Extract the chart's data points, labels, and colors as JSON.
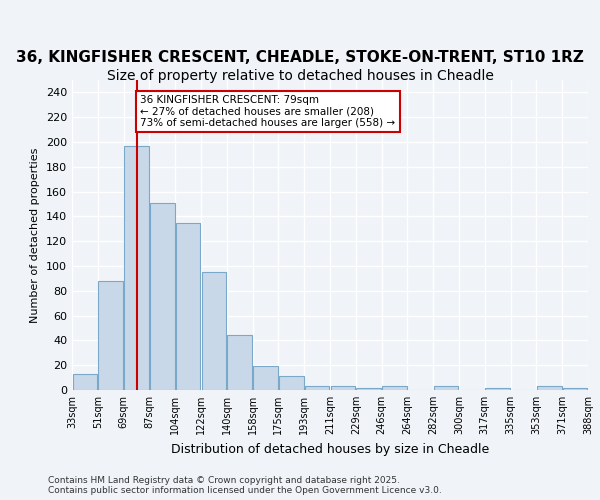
{
  "title1": "36, KINGFISHER CRESCENT, CHEADLE, STOKE-ON-TRENT, ST10 1RZ",
  "title2": "Size of property relative to detached houses in Cheadle",
  "xlabel": "Distribution of detached houses by size in Cheadle",
  "ylabel": "Number of detached properties",
  "bin_labels": [
    "33sqm",
    "51sqm",
    "69sqm",
    "87sqm",
    "104sqm",
    "122sqm",
    "140sqm",
    "158sqm",
    "175sqm",
    "193sqm",
    "211sqm",
    "229sqm",
    "246sqm",
    "264sqm",
    "282sqm",
    "300sqm",
    "317sqm",
    "335sqm",
    "353sqm",
    "371sqm",
    "388sqm"
  ],
  "values": [
    13,
    88,
    197,
    151,
    135,
    95,
    44,
    19,
    11,
    3,
    3,
    2,
    3,
    0,
    3,
    0,
    2,
    0,
    3,
    2
  ],
  "bar_color": "#c8d8e8",
  "bar_edge_color": "#7aa8c8",
  "vline_x": 2,
  "vline_color": "#cc0000",
  "annotation_text": "36 KINGFISHER CRESCENT: 79sqm\n← 27% of detached houses are smaller (208)\n73% of semi-detached houses are larger (558) →",
  "annotation_box_color": "#ffffff",
  "annotation_box_edge": "#cc0000",
  "ylim": [
    0,
    250
  ],
  "yticks": [
    0,
    20,
    40,
    60,
    80,
    100,
    120,
    140,
    160,
    180,
    200,
    220,
    240
  ],
  "footer_text": "Contains HM Land Registry data © Crown copyright and database right 2025.\nContains public sector information licensed under the Open Government Licence v3.0.",
  "bg_color": "#f0f4f8",
  "grid_color": "#ffffff",
  "title1_fontsize": 11,
  "title2_fontsize": 10
}
